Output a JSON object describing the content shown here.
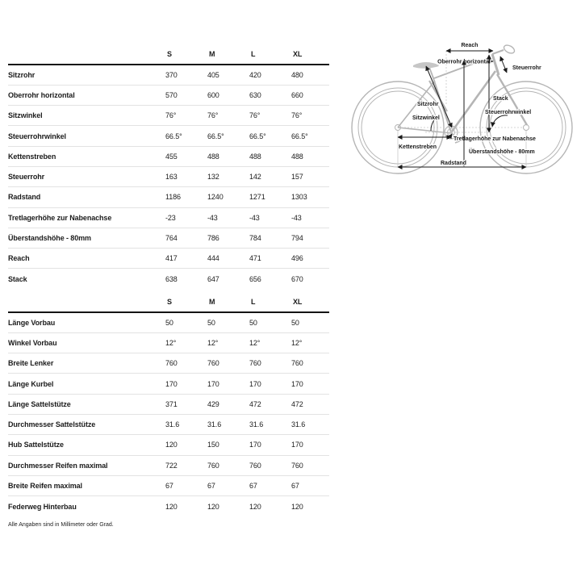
{
  "page": {
    "footnote": "Alle Angaben sind in Millimeter oder Grad."
  },
  "colors": {
    "text": "#1c1c1c",
    "row_divider": "#e3e3e3",
    "header_rule": "#141414",
    "diagram_line": "#b5b5b5",
    "dimension_line": "#1a1a1a"
  },
  "tables": [
    {
      "name": "rahmengeometrie",
      "columns": [
        "S",
        "M",
        "L",
        "XL"
      ],
      "rows": [
        {
          "label": "Sitzrohr",
          "values": [
            "370",
            "405",
            "420",
            "480"
          ]
        },
        {
          "label": "Oberrohr horizontal",
          "values": [
            "570",
            "600",
            "630",
            "660"
          ]
        },
        {
          "label": "Sitzwinkel",
          "values": [
            "76°",
            "76°",
            "76°",
            "76°"
          ]
        },
        {
          "label": "Steuerrohrwinkel",
          "values": [
            "66.5°",
            "66.5°",
            "66.5°",
            "66.5°"
          ]
        },
        {
          "label": "Kettenstreben",
          "values": [
            "455",
            "488",
            "488",
            "488"
          ]
        },
        {
          "label": "Steuerrohr",
          "values": [
            "163",
            "132",
            "142",
            "157"
          ]
        },
        {
          "label": "Radstand",
          "values": [
            "1186",
            "1240",
            "1271",
            "1303"
          ]
        },
        {
          "label": "Tretlagerhöhe zur Nabenachse",
          "values": [
            "-23",
            "-43",
            "-43",
            "-43"
          ]
        },
        {
          "label": "Überstandshöhe - 80mm",
          "values": [
            "764",
            "786",
            "784",
            "794"
          ]
        },
        {
          "label": "Reach",
          "values": [
            "417",
            "444",
            "471",
            "496"
          ]
        },
        {
          "label": "Stack",
          "values": [
            "638",
            "647",
            "656",
            "670"
          ]
        }
      ]
    },
    {
      "name": "komponenten",
      "columns": [
        "S",
        "M",
        "L",
        "XL"
      ],
      "rows": [
        {
          "label": "Länge Vorbau",
          "values": [
            "50",
            "50",
            "50",
            "50"
          ]
        },
        {
          "label": "Winkel Vorbau",
          "values": [
            "12°",
            "12°",
            "12°",
            "12°"
          ]
        },
        {
          "label": "Breite Lenker",
          "values": [
            "760",
            "760",
            "760",
            "760"
          ]
        },
        {
          "label": "Länge Kurbel",
          "values": [
            "170",
            "170",
            "170",
            "170"
          ]
        },
        {
          "label": "Länge Sattelstütze",
          "values": [
            "371",
            "429",
            "472",
            "472"
          ]
        },
        {
          "label": "Durchmesser Sattelstütze",
          "values": [
            "31.6",
            "31.6",
            "31.6",
            "31.6"
          ]
        },
        {
          "label": "Hub Sattelstütze",
          "values": [
            "120",
            "150",
            "170",
            "170"
          ]
        },
        {
          "label": "Durchmesser Reifen maximal",
          "values": [
            "722",
            "760",
            "760",
            "760"
          ]
        },
        {
          "label": "Breite Reifen maximal",
          "values": [
            "67",
            "67",
            "67",
            "67"
          ]
        },
        {
          "label": "Federweg Hinterbau",
          "values": [
            "120",
            "120",
            "120",
            "120"
          ]
        }
      ]
    }
  ],
  "diagram": {
    "labels": {
      "reach": "Reach",
      "oberrohr_horizontal": "Oberrohr horizontal",
      "steuerrohr": "Steuerrohr",
      "sitzrohr": "Sitzrohr",
      "sitzwinkel": "Sitzwinkel",
      "stack": "Stack",
      "steuerrohrwinkel": "Steuerrohrwinkel",
      "kettenstreben": "Kettenstreben",
      "tretlagerhoehe": "Tretlagerhöhe zur Nabenachse",
      "ueberstandshoehe": "Überstandshöhe - 80mm",
      "radstand": "Radstand"
    }
  }
}
